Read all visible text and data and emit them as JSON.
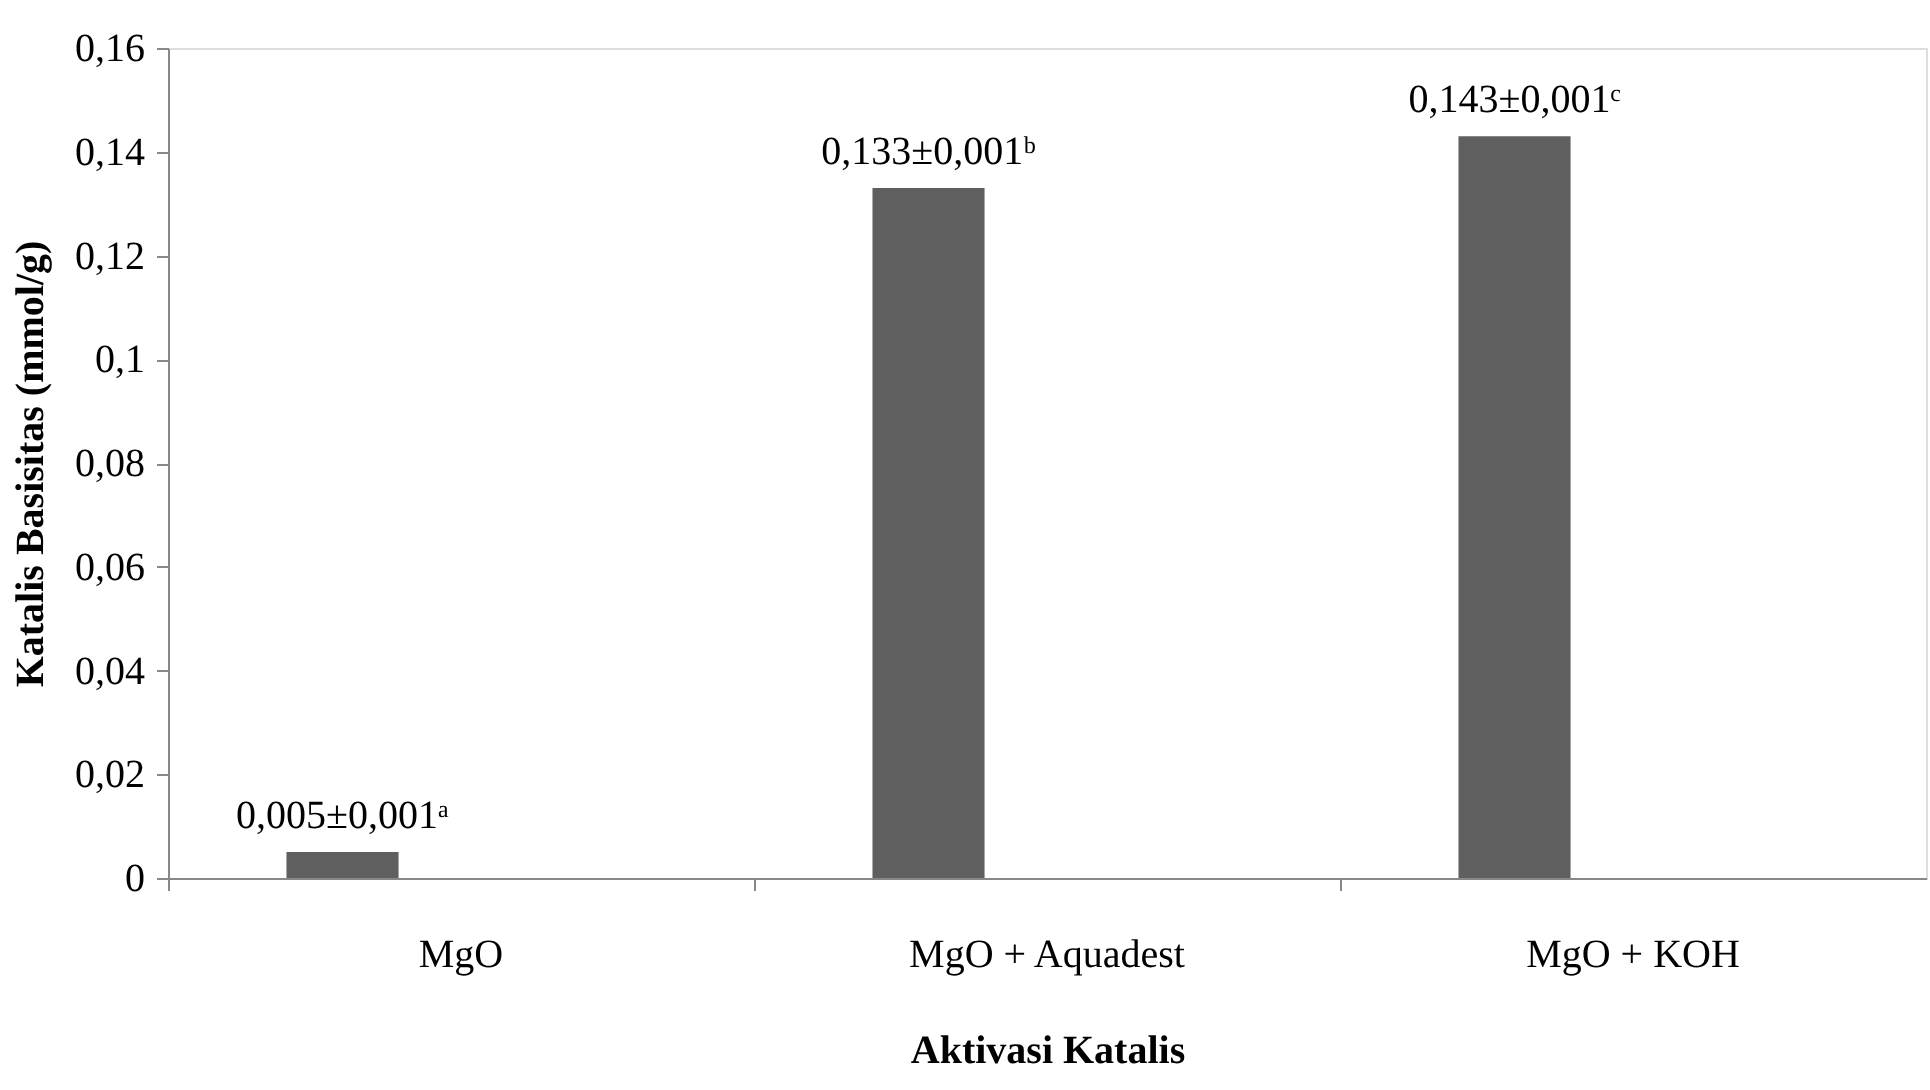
{
  "chart_data": {
    "type": "bar",
    "xlabel": "Aktivasi Katalis",
    "ylabel": "Katalis Basisitas (mmol/g)",
    "categories": [
      "MgO",
      "MgO + Aquadest",
      "MgO + KOH"
    ],
    "values": [
      0.005,
      0.133,
      0.143
    ],
    "value_labels": [
      "0,005±0,001ᵃ",
      "0,133±0,001ᵇ",
      "0,143±0,001ᶜ"
    ],
    "color": "#5f5f5f",
    "ylim": [
      0,
      0.16
    ],
    "yticks": [
      0,
      {
        "value": 0.02,
        "label": "0,02"
      },
      {
        "value": 0.04,
        "label": "0,04"
      },
      {
        "value": 0.06,
        "label": "0,06"
      },
      {
        "value": 0.08,
        "label": "0,08"
      },
      {
        "value": 0.1,
        "label": "0,1"
      },
      {
        "value": 0.12,
        "label": "0,12"
      },
      {
        "value": 0.14,
        "label": "0,14"
      },
      {
        "value": 0.16,
        "label": "0,16"
      }
    ],
    "grid": false
  }
}
